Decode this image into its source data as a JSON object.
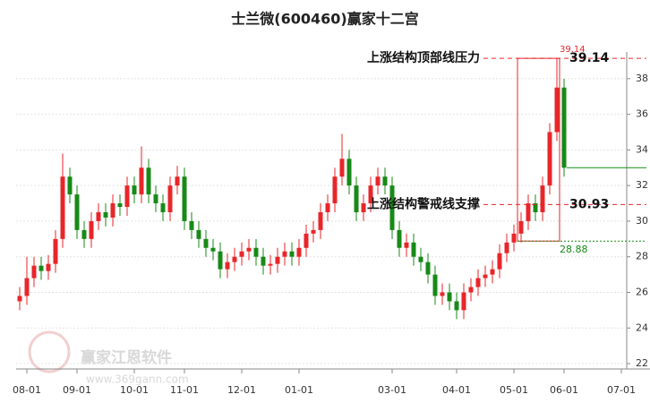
{
  "chart_data": {
    "type": "candlestick",
    "title": "士兰微(600460)赢家十二宫",
    "categories": [
      null,
      "08-01",
      null,
      null,
      null,
      null,
      null,
      null,
      "09-01",
      null,
      null,
      null,
      null,
      null,
      null,
      null,
      "10-01",
      null,
      null,
      null,
      null,
      null,
      null,
      "11-01",
      null,
      null,
      null,
      null,
      null,
      null,
      null,
      "12-01",
      null,
      null,
      null,
      null,
      null,
      null,
      null,
      "01-01",
      null,
      null,
      null,
      null,
      null,
      null,
      null,
      null,
      null,
      null,
      null,
      null,
      "03-01",
      null,
      null,
      null,
      null,
      null,
      null,
      null,
      null,
      "04-01",
      null,
      null,
      null,
      null,
      null,
      null,
      null,
      "05-01",
      null,
      null,
      null,
      null,
      null,
      null,
      "06-01",
      null,
      null,
      null,
      null,
      null,
      null,
      null,
      "07-01",
      null
    ],
    "open": [
      25.5,
      25.8,
      26.8,
      27.5,
      27.2,
      27.6,
      29,
      32.5,
      31.5,
      29.5,
      29,
      30,
      30.5,
      30.2,
      31,
      30.8,
      32,
      31.5,
      33,
      31.5,
      31,
      30.5,
      32,
      32.5,
      30,
      29.5,
      29,
      28.5,
      28.3,
      27.3,
      27.7,
      28,
      28.3,
      28.5,
      28,
      27.5,
      27.6,
      28,
      28.3,
      28,
      28.5,
      29.3,
      29.5,
      30.5,
      31,
      32.5,
      33.5,
      32,
      30.5,
      31,
      32,
      32.5,
      32,
      29.5,
      28.5,
      28.8,
      28,
      27.7,
      27,
      25.8,
      26,
      25.5,
      25,
      26,
      26.3,
      26.8,
      27,
      27.3,
      28.2,
      28.8,
      29.3,
      30,
      31,
      30.5,
      32,
      35,
      37.5,
      null,
      null,
      null,
      null,
      null,
      null,
      null,
      null,
      null
    ],
    "high": [
      26.3,
      28.0,
      28.0,
      28.0,
      28.1,
      29.5,
      33.8,
      33.0,
      32.0,
      30.0,
      30.5,
      31.0,
      31.0,
      31.5,
      31.5,
      32.5,
      32.5,
      34.2,
      33.5,
      32.0,
      31.5,
      32.5,
      33.1,
      33.0,
      30.5,
      30.0,
      29.5,
      29.0,
      28.8,
      28.2,
      28.5,
      28.8,
      29.0,
      29.0,
      28.5,
      28.1,
      28.5,
      28.8,
      28.8,
      29.0,
      29.8,
      30.0,
      31.0,
      31.5,
      33.0,
      34.9,
      34.0,
      32.5,
      31.5,
      32.5,
      33.0,
      33.0,
      32.5,
      30.0,
      29.3,
      29.3,
      28.5,
      28.2,
      27.5,
      26.5,
      26.5,
      26.0,
      26.5,
      26.8,
      27.3,
      27.5,
      27.8,
      28.7,
      29.3,
      29.8,
      30.5,
      31.5,
      31.5,
      32.5,
      35.5,
      39.14,
      38.0,
      null,
      null,
      null,
      null,
      null,
      null,
      null,
      null,
      null
    ],
    "low": [
      25.0,
      25.3,
      26.3,
      26.7,
      26.7,
      27.1,
      28.5,
      31.0,
      29.0,
      28.5,
      28.5,
      29.5,
      29.7,
      29.7,
      30.3,
      30.3,
      31.0,
      31.0,
      31.0,
      30.5,
      30.0,
      30.0,
      31.5,
      29.5,
      29.0,
      28.5,
      28.0,
      27.8,
      26.8,
      26.8,
      27.2,
      27.5,
      27.8,
      27.5,
      27.0,
      27.0,
      27.1,
      27.5,
      27.5,
      27.5,
      28.0,
      28.8,
      29.0,
      30.0,
      30.5,
      32.0,
      31.5,
      30.0,
      30.0,
      30.5,
      31.5,
      31.5,
      29.0,
      28.0,
      28.0,
      27.5,
      27.2,
      26.5,
      25.3,
      25.3,
      25.0,
      24.5,
      24.5,
      25.5,
      25.8,
      26.3,
      26.5,
      26.8,
      27.7,
      28.3,
      28.8,
      29.5,
      30.0,
      30.0,
      31.5,
      34.5,
      32.5,
      null,
      null,
      null,
      null,
      null,
      null,
      null,
      null,
      null
    ],
    "close": [
      25.8,
      26.8,
      27.5,
      27.2,
      27.6,
      29,
      32.5,
      31.5,
      29.5,
      29,
      30,
      30.5,
      30.2,
      31,
      30.8,
      32,
      31.5,
      33,
      31.5,
      31,
      30.5,
      32,
      32.5,
      30,
      29.5,
      29,
      28.5,
      28.3,
      27.3,
      27.7,
      28,
      28.3,
      28.5,
      28,
      27.5,
      27.6,
      28,
      28.3,
      28,
      28.5,
      29.3,
      29.5,
      30.5,
      31,
      32.5,
      33.5,
      32,
      30.5,
      31,
      32,
      32.5,
      32,
      29.5,
      28.5,
      28.8,
      28,
      27.7,
      27,
      25.8,
      26,
      25.5,
      25,
      26,
      26.3,
      26.8,
      27,
      27.3,
      28.2,
      28.8,
      29.3,
      30,
      31,
      30.5,
      32,
      35,
      37.5,
      33,
      null,
      null,
      null,
      null,
      null,
      null,
      null,
      null,
      null
    ],
    "up_color": "#e8262a",
    "down_color": "#178a17",
    "ylim": [
      21.7,
      39.5
    ],
    "yticks": [
      22,
      24,
      26,
      28,
      30,
      32,
      34,
      36,
      38
    ],
    "grid": true,
    "resistance": {
      "label": "上涨结构顶部线压力",
      "value": 39.14
    },
    "support": {
      "label": "上涨结构警戒线支撑",
      "value": 30.93
    },
    "box_low": 28.88,
    "watermark": {
      "name": "赢家江恩软件",
      "url": "www.369gann.com"
    }
  }
}
